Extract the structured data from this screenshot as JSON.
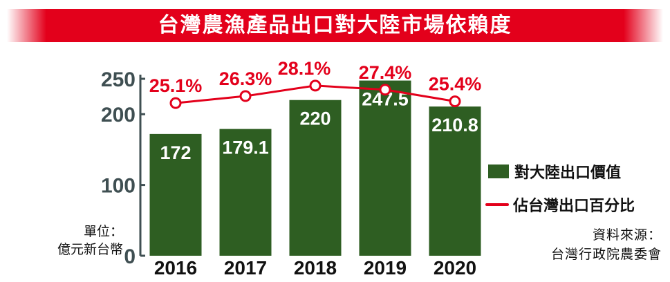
{
  "title": "台灣農漁產品出口對大陸市場依賴度",
  "unit": {
    "line1": "單位：",
    "line2": "億元新台幣"
  },
  "source": {
    "line1": "資料來源：",
    "line2": "台灣行政院農委會"
  },
  "colors": {
    "bar": "#2e5e22",
    "line": "#e3001b",
    "axis": "#3f4f52",
    "title_bg": "#e3001b"
  },
  "chart_data": {
    "type": "bar",
    "categories": [
      "2016",
      "2017",
      "2018",
      "2019",
      "2020"
    ],
    "series": [
      {
        "name": "對大陸出口價值",
        "type": "bar",
        "values": [
          172,
          179.1,
          220,
          247.5,
          210.8
        ],
        "labels": [
          "172",
          "179.1",
          "220",
          "247.5",
          "210.8"
        ]
      },
      {
        "name": "佔台灣出口百分比",
        "type": "line",
        "values": [
          25.1,
          26.3,
          28.1,
          27.4,
          25.4
        ],
        "labels": [
          "25.1%",
          "26.3%",
          "28.1%",
          "27.4%",
          "25.4%"
        ]
      }
    ],
    "yticks": [
      "0",
      "100",
      "200",
      "250"
    ],
    "ytick_values": [
      0,
      100,
      200,
      250
    ],
    "ylim": [
      0,
      250
    ],
    "legend_position": "right",
    "grid": false
  }
}
